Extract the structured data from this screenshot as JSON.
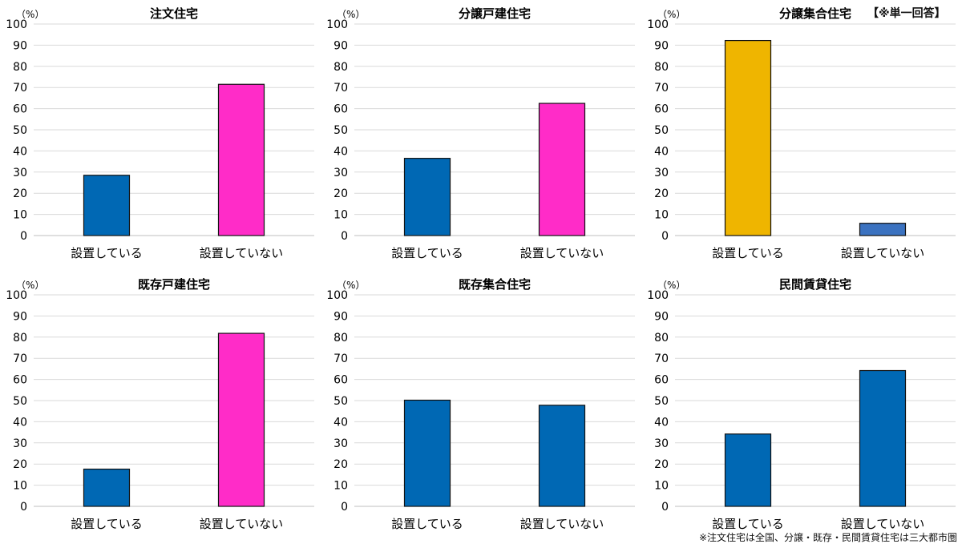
{
  "badge": "【※単一回答】",
  "footnote": "※注文住宅は全国、分譲・既存・民間賃貸住宅は三大都市圏",
  "colors": {
    "blue": "#0068B4",
    "blue_light": "#3B72C0",
    "magenta": "#FF2CC8",
    "gold": "#EFB500",
    "grid": "#d9d9d9"
  },
  "chart_data": [
    {
      "type": "bar",
      "title": "注文住宅",
      "unit": "（%）",
      "ylim": [
        0,
        100
      ],
      "yticks": [
        0,
        10,
        20,
        30,
        40,
        50,
        60,
        70,
        80,
        90,
        100
      ],
      "categories": [
        "設置している",
        "設置していない"
      ],
      "values": [
        28.5,
        71.5
      ],
      "bar_colors": [
        "blue",
        "magenta"
      ],
      "grid": true
    },
    {
      "type": "bar",
      "title": "分譲戸建住宅",
      "unit": "（%）",
      "ylim": [
        0,
        100
      ],
      "yticks": [
        0,
        10,
        20,
        30,
        40,
        50,
        60,
        70,
        80,
        90,
        100
      ],
      "categories": [
        "設置している",
        "設置していない"
      ],
      "values": [
        36.5,
        62.5
      ],
      "bar_colors": [
        "blue",
        "magenta"
      ],
      "grid": true
    },
    {
      "type": "bar",
      "title": "分譲集合住宅",
      "unit": "（%）",
      "ylim": [
        0,
        100
      ],
      "yticks": [
        0,
        10,
        20,
        30,
        40,
        50,
        60,
        70,
        80,
        90,
        100
      ],
      "categories": [
        "設置している",
        "設置していない"
      ],
      "values": [
        92.2,
        5.8
      ],
      "bar_colors": [
        "gold",
        "blue_light"
      ],
      "grid": true
    },
    {
      "type": "bar",
      "title": "既存戸建住宅",
      "unit": "（%）",
      "ylim": [
        0,
        100
      ],
      "yticks": [
        0,
        10,
        20,
        30,
        40,
        50,
        60,
        70,
        80,
        90,
        100
      ],
      "categories": [
        "設置している",
        "設置していない"
      ],
      "values": [
        17.6,
        81.8
      ],
      "bar_colors": [
        "blue",
        "magenta"
      ],
      "grid": true
    },
    {
      "type": "bar",
      "title": "既存集合住宅",
      "unit": "（%）",
      "ylim": [
        0,
        100
      ],
      "yticks": [
        0,
        10,
        20,
        30,
        40,
        50,
        60,
        70,
        80,
        90,
        100
      ],
      "categories": [
        "設置している",
        "設置していない"
      ],
      "values": [
        50.2,
        47.8
      ],
      "bar_colors": [
        "blue",
        "blue"
      ],
      "grid": true
    },
    {
      "type": "bar",
      "title": "民間賃貸住宅",
      "unit": "（%）",
      "ylim": [
        0,
        100
      ],
      "yticks": [
        0,
        10,
        20,
        30,
        40,
        50,
        60,
        70,
        80,
        90,
        100
      ],
      "categories": [
        "設置している",
        "設置していない"
      ],
      "values": [
        34.2,
        64.2
      ],
      "bar_colors": [
        "blue",
        "blue"
      ],
      "grid": true
    }
  ]
}
